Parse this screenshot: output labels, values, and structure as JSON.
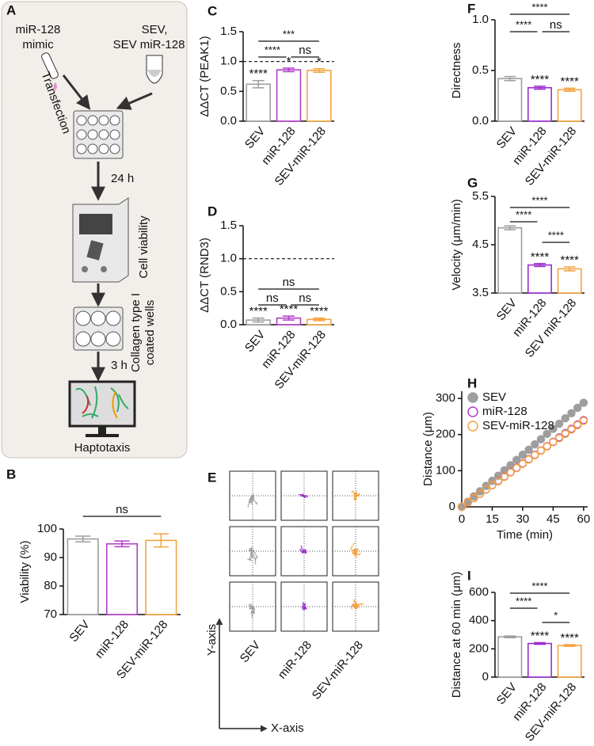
{
  "diagram": {
    "panel": "A",
    "mimic_label": [
      "miR-128",
      "mimic"
    ],
    "sev_label": [
      "SEV,",
      "SEV miR-128"
    ],
    "transfection": "Transfection",
    "step1_time": "24 h",
    "viability": "Cell viability",
    "coating": [
      "Collagen type I",
      "coated wells"
    ],
    "step2_time": "3 h",
    "assay": "Haptotaxis"
  },
  "trajectories": {
    "panel": "E",
    "columns": [
      "SEV",
      "miR-128",
      "SEV-miR-128"
    ],
    "colors": [
      "#9e9e9e",
      "#9b2fd0",
      "#f4a340"
    ],
    "y_axis": "Y-axis",
    "x_axis": "X-axis"
  },
  "chart_data": [
    {
      "type": "bar",
      "panel": "B",
      "ylabel": "Viability (%)",
      "categories": [
        "SEV",
        "miR-128",
        "SEV-miR-128"
      ],
      "values": [
        96.5,
        94.8,
        96
      ],
      "errors": [
        1,
        1,
        2.3
      ],
      "colors": [
        "#9e9e9e",
        "#b23ec9",
        "#f4a340"
      ],
      "ylim": [
        70,
        100
      ],
      "yticks": [
        70,
        80,
        90,
        100
      ],
      "brackets": [
        "ns"
      ]
    },
    {
      "type": "bar",
      "panel": "C",
      "ylabel": "ΔΔCT (PEAK1)",
      "categories": [
        "SEV",
        "miR-128",
        "SEV-miR-128"
      ],
      "values": [
        0.62,
        0.86,
        0.85
      ],
      "errors": [
        0.06,
        0.03,
        0.03
      ],
      "colors": [
        "#9e9e9e",
        "#b23ec9",
        "#f4a340"
      ],
      "ylim": [
        0,
        1.5
      ],
      "yticks": [
        {
          "value": 0,
          "label": "0.0"
        },
        0.5,
        {
          "value": 1,
          "label": "1.0"
        },
        1.5
      ],
      "reference_line": 1,
      "bar_annotations": [
        "****",
        "*",
        "*"
      ],
      "brackets": [
        "***",
        "****",
        "ns"
      ]
    },
    {
      "type": "bar",
      "panel": "D",
      "ylabel": "ΔΔCT (RND3)",
      "categories": [
        "SEV",
        "miR-128",
        "SEV-miR-128"
      ],
      "values": [
        0.07,
        0.1,
        0.08
      ],
      "errors": [
        0.03,
        0.03,
        0.02
      ],
      "colors": [
        "#9e9e9e",
        "#b23ec9",
        "#f4a340"
      ],
      "ylim": [
        0,
        1.5
      ],
      "yticks": [
        {
          "value": 0,
          "label": "0.0"
        },
        0.5,
        {
          "value": 1,
          "label": "1.0"
        },
        1.5
      ],
      "reference_line": 1,
      "bar_annotations": [
        "****",
        "****",
        "****"
      ],
      "brackets": [
        "ns",
        "ns",
        "ns"
      ]
    },
    {
      "type": "bar",
      "panel": "F",
      "ylabel": "Directness",
      "categories": [
        "SEV",
        "miR-128",
        "SEV-miR-128"
      ],
      "values": [
        0.42,
        0.33,
        0.31
      ],
      "errors": [
        0.02,
        0.015,
        0.015
      ],
      "colors": [
        "#9e9e9e",
        "#9b2fd0",
        "#f4a340"
      ],
      "ylim": [
        0,
        1
      ],
      "yticks": [
        {
          "value": 0,
          "label": "0.0"
        },
        0.5,
        {
          "value": 1,
          "label": "1.0"
        }
      ],
      "bar_annotations": [
        null,
        "****",
        "****"
      ],
      "brackets": [
        "****",
        "****",
        "ns"
      ]
    },
    {
      "type": "bar",
      "panel": "G",
      "ylabel": "Velocity (μm/min)",
      "categories": [
        "SEV",
        "miR-128",
        "SEV miR-128"
      ],
      "values": [
        4.85,
        4.08,
        4.0
      ],
      "errors": [
        0.04,
        0.03,
        0.04
      ],
      "colors": [
        "#9e9e9e",
        "#9b2fd0",
        "#f4a340"
      ],
      "ylim": [
        3.5,
        5.5
      ],
      "yticks": [
        3.5,
        4.5,
        5.5
      ],
      "bar_annotations": [
        null,
        "****",
        "****"
      ],
      "brackets": [
        "****",
        "****",
        "****"
      ]
    },
    {
      "type": "scatter",
      "panel": "H",
      "xlabel": "Time (min)",
      "ylabel": "Distance (μm)",
      "x": [
        0,
        3,
        6,
        9,
        12,
        15,
        18,
        21,
        24,
        27,
        30,
        33,
        36,
        39,
        42,
        45,
        48,
        51,
        54,
        57,
        60
      ],
      "series": [
        {
          "name": "SEV",
          "color": "#9e9e9e",
          "filled": true,
          "values": [
            0,
            14,
            29,
            43,
            58,
            72,
            86,
            101,
            115,
            130,
            144,
            158,
            173,
            187,
            202,
            216,
            230,
            245,
            259,
            274,
            288
          ]
        },
        {
          "name": "miR-128",
          "color": "#b23ec9",
          "filled": false,
          "values": [
            0,
            12,
            24,
            36,
            48,
            60,
            72,
            84,
            96,
            108,
            120,
            132,
            144,
            156,
            168,
            180,
            192,
            204,
            216,
            228,
            240
          ]
        },
        {
          "name": "SEV-miR-128",
          "color": "#f4a340",
          "filled": false,
          "values": [
            0,
            12,
            24,
            36,
            48,
            60,
            71,
            83,
            95,
            107,
            119,
            131,
            143,
            155,
            167,
            179,
            190,
            202,
            214,
            226,
            238
          ]
        }
      ],
      "xlim": [
        0,
        62
      ],
      "xticks": [
        0,
        15,
        30,
        45,
        60
      ],
      "ylim": [
        0,
        320
      ],
      "yticks": [
        0,
        100,
        200,
        300
      ],
      "legend": "top-left"
    },
    {
      "type": "bar",
      "panel": "I",
      "ylabel": "Distance at 60 min (μm)",
      "categories": [
        "SEV",
        "miR-128",
        "SEV-miR-128"
      ],
      "values": [
        285,
        238,
        224
      ],
      "errors": [
        6,
        6,
        6
      ],
      "colors": [
        "#9e9e9e",
        "#9b2fd0",
        "#f4a340"
      ],
      "ylim": [
        0,
        600
      ],
      "yticks": [
        0,
        200,
        400,
        600
      ],
      "bar_annotations": [
        null,
        "****",
        "****"
      ],
      "brackets": [
        "****",
        "****",
        "*"
      ]
    }
  ]
}
